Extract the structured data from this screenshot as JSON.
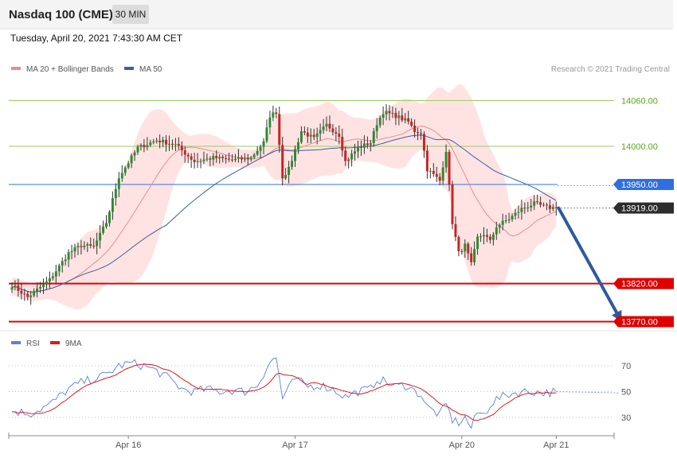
{
  "header": {
    "title": "Nasdaq 100 (CME)",
    "timeframe": "30 MIN",
    "datetime": "Tuesday, April 20, 2021 7:43:30 AM CET"
  },
  "colors": {
    "up": "#2e8b2e",
    "down": "#cc2222",
    "ma20": "#f08a8a",
    "bollinger_fill": "#ffdede",
    "ma50": "#3b5fa0",
    "support": "#e00000",
    "resistance_green": "#9acd60",
    "level_blue": "#2f6fe0",
    "arrow": "#2d5aa0",
    "rsi": "#5b7fe0",
    "rsi_ma": "#e01818"
  },
  "chart_data": [
    {
      "type": "candlestick",
      "legend": [
        {
          "name": "MA 20 + Bollinger Bands",
          "color": "#f08a8a"
        },
        {
          "name": "MA 50",
          "color": "#3b5fa0"
        }
      ],
      "legend_position": "top-left",
      "credit": "Research © 2021 Trading Central",
      "ylim": [
        13762,
        14086
      ],
      "x_ticks": [
        {
          "label": "Apr 16",
          "index": 37
        },
        {
          "label": "Apr 17",
          "index": 90
        },
        {
          "label": "Apr 20",
          "index": 143
        },
        {
          "label": "Apr 21",
          "index": 173
        }
      ],
      "levels": [
        {
          "value": 14060.0,
          "label": "14060.00",
          "style": "green-line"
        },
        {
          "value": 14000.0,
          "label": "14000.00",
          "style": "green-line"
        },
        {
          "value": 13950.0,
          "label": "13950.00",
          "style": "blue-tag"
        },
        {
          "value": 13919.0,
          "label": "13919.00",
          "style": "last-price-tag"
        },
        {
          "value": 13820.0,
          "label": "13820.00",
          "style": "red-tag"
        },
        {
          "value": 13770.0,
          "label": "13770.00",
          "style": "red-tag"
        }
      ],
      "forecast_arrow": {
        "from": [
          173,
          13919
        ],
        "to": [
          190,
          13770
        ]
      },
      "waypoints": [
        [
          0,
          13818
        ],
        [
          5,
          13802
        ],
        [
          12,
          13825
        ],
        [
          18,
          13860
        ],
        [
          22,
          13870
        ],
        [
          26,
          13868
        ],
        [
          30,
          13900
        ],
        [
          34,
          13960
        ],
        [
          40,
          13998
        ],
        [
          46,
          14008
        ],
        [
          52,
          14002
        ],
        [
          58,
          13980
        ],
        [
          64,
          13985
        ],
        [
          70,
          13982
        ],
        [
          76,
          13985
        ],
        [
          80,
          14005
        ],
        [
          82,
          14040
        ],
        [
          84,
          14045
        ],
        [
          86,
          13960
        ],
        [
          88,
          13970
        ],
        [
          92,
          14020
        ],
        [
          96,
          14010
        ],
        [
          100,
          14028
        ],
        [
          104,
          14015
        ],
        [
          106,
          13980
        ],
        [
          110,
          13998
        ],
        [
          114,
          14005
        ],
        [
          116,
          14030
        ],
        [
          118,
          14045
        ],
        [
          122,
          14040
        ],
        [
          126,
          14032
        ],
        [
          128,
          14020
        ],
        [
          130,
          14018
        ],
        [
          132,
          13970
        ],
        [
          136,
          13955
        ],
        [
          138,
          13995
        ],
        [
          140,
          13900
        ],
        [
          142,
          13860
        ],
        [
          144,
          13870
        ],
        [
          146,
          13845
        ],
        [
          148,
          13880
        ],
        [
          150,
          13885
        ],
        [
          152,
          13875
        ],
        [
          154,
          13895
        ],
        [
          158,
          13905
        ],
        [
          162,
          13918
        ],
        [
          166,
          13925
        ],
        [
          170,
          13920
        ],
        [
          173,
          13919
        ]
      ]
    },
    {
      "type": "line",
      "series": [
        {
          "name": "RSI",
          "color": "#5b7fe0"
        },
        {
          "name": "9MA",
          "color": "#e01818"
        }
      ],
      "ylim": [
        20,
        80
      ],
      "y_ticks": [
        70,
        50,
        30
      ],
      "rsi_waypoints": [
        [
          0,
          35
        ],
        [
          6,
          33
        ],
        [
          12,
          40
        ],
        [
          18,
          52
        ],
        [
          22,
          57
        ],
        [
          26,
          60
        ],
        [
          30,
          63
        ],
        [
          34,
          70
        ],
        [
          38,
          72
        ],
        [
          42,
          70
        ],
        [
          46,
          66
        ],
        [
          50,
          60
        ],
        [
          54,
          52
        ],
        [
          58,
          50
        ],
        [
          62,
          52
        ],
        [
          66,
          50
        ],
        [
          70,
          51
        ],
        [
          74,
          50
        ],
        [
          78,
          55
        ],
        [
          80,
          64
        ],
        [
          82,
          73
        ],
        [
          84,
          76
        ],
        [
          86,
          45
        ],
        [
          90,
          60
        ],
        [
          94,
          54
        ],
        [
          98,
          55
        ],
        [
          102,
          52
        ],
        [
          106,
          46
        ],
        [
          110,
          50
        ],
        [
          114,
          52
        ],
        [
          116,
          60
        ],
        [
          118,
          58
        ],
        [
          122,
          54
        ],
        [
          126,
          55
        ],
        [
          128,
          50
        ],
        [
          130,
          48
        ],
        [
          132,
          38
        ],
        [
          136,
          32
        ],
        [
          138,
          40
        ],
        [
          140,
          28
        ],
        [
          142,
          26
        ],
        [
          144,
          30
        ],
        [
          146,
          22
        ],
        [
          148,
          34
        ],
        [
          150,
          32
        ],
        [
          152,
          40
        ],
        [
          154,
          44
        ],
        [
          158,
          48
        ],
        [
          162,
          50
        ],
        [
          166,
          50
        ],
        [
          170,
          49
        ],
        [
          173,
          50
        ]
      ],
      "rsi_forecast": [
        [
          173,
          50
        ],
        [
          193,
          49
        ]
      ]
    }
  ]
}
